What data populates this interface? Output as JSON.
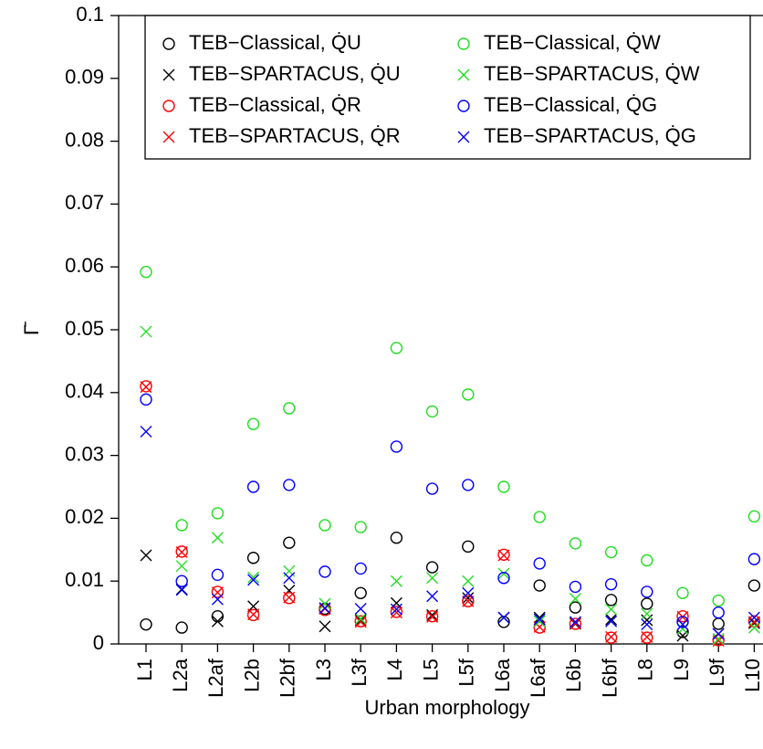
{
  "chart_data": {
    "type": "scatter",
    "xlabel": "Urban morphology",
    "ylabel": "Γ̄",
    "categories": [
      "L1",
      "L2a",
      "L2af",
      "L2b",
      "L2bf",
      "L3",
      "L3f",
      "L4",
      "L5",
      "L5f",
      "L6a",
      "L6af",
      "L6b",
      "L6bf",
      "L8",
      "L9",
      "L9f",
      "L10"
    ],
    "ylim": [
      0,
      0.1
    ],
    "yticks": [
      0,
      0.01,
      0.02,
      0.03,
      0.04,
      0.05,
      0.06,
      0.07,
      0.08,
      0.09,
      0.1
    ],
    "legend": "top",
    "series": [
      {
        "name": "TEB−Classical, Q̇U",
        "color": "#000000",
        "marker": "circle",
        "values": [
          0.0031,
          0.0026,
          0.0044,
          0.0137,
          0.0161,
          0.0056,
          0.0081,
          0.0169,
          0.0122,
          0.0155,
          0.0035,
          0.0093,
          0.0058,
          0.007,
          0.0064,
          0.0019,
          0.0032,
          0.0093
        ]
      },
      {
        "name": "TEB−SPARTACUS, Q̇U",
        "color": "#000000",
        "marker": "x",
        "values": [
          0.0141,
          0.0087,
          0.0036,
          0.006,
          0.0085,
          0.0028,
          0.0038,
          0.0065,
          0.0046,
          0.0073,
          0.0042,
          0.0042,
          0.0032,
          0.0039,
          0.0038,
          0.0013,
          0.0016,
          0.0033
        ]
      },
      {
        "name": "TEB−Classical, Q̇R",
        "color": "#ff0000",
        "marker": "circle",
        "values": [
          0.041,
          0.0147,
          0.0083,
          0.0046,
          0.0073,
          0.0054,
          0.0036,
          0.0051,
          0.0044,
          0.0068,
          0.0142,
          0.0026,
          0.0032,
          0.001,
          0.001,
          0.0044,
          0.0006,
          0.0036
        ]
      },
      {
        "name": "TEB−SPARTACUS, Q̇R",
        "color": "#ff0000",
        "marker": "x",
        "values": [
          0.0409,
          0.0146,
          0.0082,
          0.0047,
          0.0074,
          0.0056,
          0.0035,
          0.005,
          0.0043,
          0.0068,
          0.0141,
          0.0027,
          0.0033,
          0.0011,
          0.0011,
          0.0043,
          0.0005,
          0.0035
        ]
      },
      {
        "name": "TEB−Classical, Q̇W",
        "color": "#22dd22",
        "marker": "circle",
        "values": [
          0.0592,
          0.0189,
          0.0208,
          0.035,
          0.0375,
          0.0189,
          0.0186,
          0.0471,
          0.037,
          0.0397,
          0.025,
          0.0202,
          0.016,
          0.0146,
          0.0133,
          0.0081,
          0.0069,
          0.0203
        ]
      },
      {
        "name": "TEB−SPARTACUS, Q̇W",
        "color": "#22dd22",
        "marker": "x",
        "values": [
          0.0497,
          0.0124,
          0.0169,
          0.0106,
          0.0116,
          0.0064,
          0.004,
          0.01,
          0.0105,
          0.01,
          0.0112,
          0.0036,
          0.0072,
          0.0055,
          0.0048,
          0.0024,
          0.0008,
          0.0026
        ]
      },
      {
        "name": "TEB−Classical, Q̇G",
        "color": "#0000ff",
        "marker": "circle",
        "values": [
          0.0389,
          0.01,
          0.011,
          0.025,
          0.0253,
          0.0115,
          0.012,
          0.0314,
          0.0247,
          0.0253,
          0.0105,
          0.0128,
          0.0091,
          0.0095,
          0.0083,
          0.0035,
          0.005,
          0.0135
        ]
      },
      {
        "name": "TEB−SPARTACUS, Q̇G",
        "color": "#0000ff",
        "marker": "x",
        "values": [
          0.0338,
          0.0086,
          0.0071,
          0.0102,
          0.0105,
          0.0057,
          0.0056,
          0.0055,
          0.0076,
          0.0081,
          0.0042,
          0.0039,
          0.0035,
          0.0036,
          0.0031,
          0.0031,
          0.0016,
          0.0042
        ]
      }
    ]
  }
}
